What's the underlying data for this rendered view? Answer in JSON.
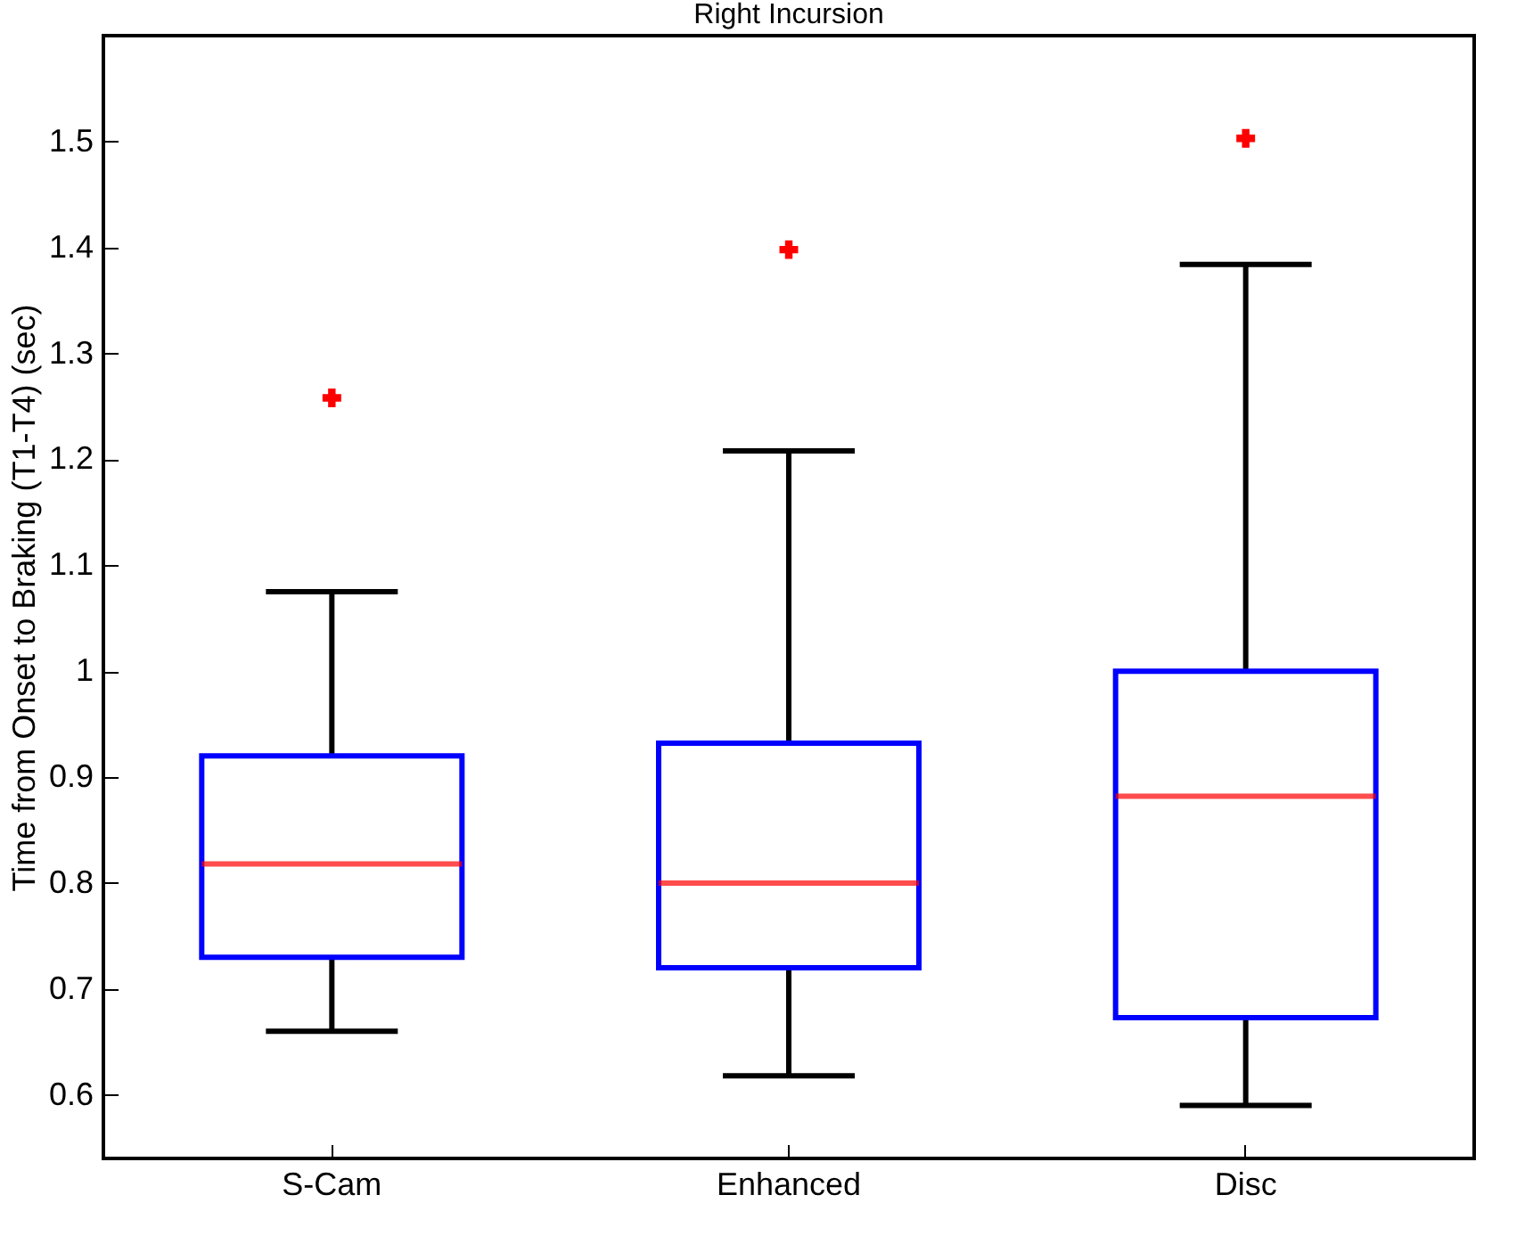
{
  "chart_data": {
    "type": "box",
    "title": "Right Incursion",
    "ylabel": "Time from Onset to Braking (T1-T4) (sec)",
    "categories": [
      "S-Cam",
      "Enhanced",
      "Disc"
    ],
    "boxes": [
      {
        "low": 0.66,
        "q1": 0.73,
        "median": 0.818,
        "q3": 0.92,
        "high": 1.075,
        "outliers": [
          1.258
        ]
      },
      {
        "low": 0.618,
        "q1": 0.72,
        "median": 0.8,
        "q3": 0.932,
        "high": 1.208,
        "outliers": [
          1.398
        ]
      },
      {
        "low": 0.59,
        "q1": 0.673,
        "median": 0.882,
        "q3": 1.0,
        "high": 1.384,
        "outliers": [
          1.503
        ]
      }
    ],
    "ylim": [
      0.54,
      1.6
    ],
    "yticks": [
      0.6,
      0.7,
      0.8,
      0.9,
      1,
      1.1,
      1.2,
      1.3,
      1.4,
      1.5
    ],
    "grid": false
  }
}
